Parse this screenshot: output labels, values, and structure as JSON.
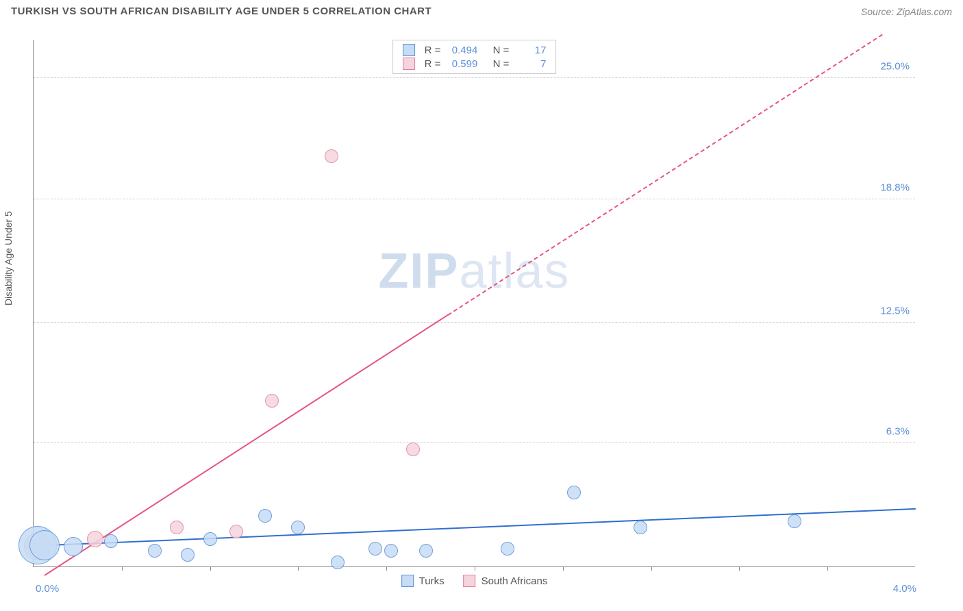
{
  "header": {
    "title": "TURKISH VS SOUTH AFRICAN DISABILITY AGE UNDER 5 CORRELATION CHART",
    "source": "Source: ZipAtlas.com"
  },
  "chart": {
    "type": "scatter",
    "ylabel": "Disability Age Under 5",
    "xlim": [
      0.0,
      4.0
    ],
    "ylim": [
      0.0,
      27.0
    ],
    "xtick_labels": [
      "0.0%",
      "4.0%"
    ],
    "ytick_values": [
      6.3,
      12.5,
      18.8,
      25.0
    ],
    "ytick_labels": [
      "6.3%",
      "12.5%",
      "18.8%",
      "25.0%"
    ],
    "xtick_minor_positions": [
      0.4,
      0.8,
      1.2,
      1.6,
      2.0,
      2.4,
      2.8,
      3.2,
      3.6
    ],
    "grid_color": "#d0d0d0",
    "background_color": "#ffffff",
    "series": {
      "turks": {
        "label": "Turks",
        "point_fill": "#c6dcf5",
        "point_stroke": "#5b8fd6",
        "line_color": "#2f6fd0",
        "points": [
          {
            "x": 0.02,
            "y": 1.1,
            "r": 28
          },
          {
            "x": 0.05,
            "y": 1.1,
            "r": 22
          },
          {
            "x": 0.18,
            "y": 1.0,
            "r": 14
          },
          {
            "x": 0.35,
            "y": 1.3,
            "r": 10
          },
          {
            "x": 0.55,
            "y": 0.8,
            "r": 10
          },
          {
            "x": 0.7,
            "y": 0.6,
            "r": 10
          },
          {
            "x": 0.8,
            "y": 1.4,
            "r": 10
          },
          {
            "x": 1.05,
            "y": 2.6,
            "r": 10
          },
          {
            "x": 1.2,
            "y": 2.0,
            "r": 10
          },
          {
            "x": 1.38,
            "y": 0.2,
            "r": 10
          },
          {
            "x": 1.55,
            "y": 0.9,
            "r": 10
          },
          {
            "x": 1.62,
            "y": 0.8,
            "r": 10
          },
          {
            "x": 1.78,
            "y": 0.8,
            "r": 10
          },
          {
            "x": 2.15,
            "y": 0.9,
            "r": 10
          },
          {
            "x": 2.45,
            "y": 3.8,
            "r": 10
          },
          {
            "x": 2.75,
            "y": 2.0,
            "r": 10
          },
          {
            "x": 3.45,
            "y": 2.3,
            "r": 10
          }
        ],
        "trend": {
          "x1": 0.0,
          "y1": 1.0,
          "x2": 4.0,
          "y2": 2.9,
          "dash_after_x": 4.0
        }
      },
      "south_africans": {
        "label": "South Africans",
        "point_fill": "#f6d4dd",
        "point_stroke": "#e07f9a",
        "line_color": "#e75480",
        "points": [
          {
            "x": 0.02,
            "y": 1.0,
            "r": 20
          },
          {
            "x": 0.28,
            "y": 1.4,
            "r": 12
          },
          {
            "x": 0.65,
            "y": 2.0,
            "r": 10
          },
          {
            "x": 0.92,
            "y": 1.8,
            "r": 10
          },
          {
            "x": 1.08,
            "y": 8.5,
            "r": 10
          },
          {
            "x": 1.35,
            "y": 21.0,
            "r": 10
          },
          {
            "x": 1.72,
            "y": 6.0,
            "r": 10
          }
        ],
        "trend": {
          "x1": 0.05,
          "y1": -0.5,
          "x2": 3.85,
          "y2": 27.2,
          "dash_after_x": 1.88
        }
      }
    },
    "stats_legend": [
      {
        "series": "turks",
        "R": "0.494",
        "N": "17"
      },
      {
        "series": "south_africans",
        "R": "0.599",
        "N": "7"
      }
    ],
    "bottom_legend": [
      "turks",
      "south_africans"
    ],
    "watermark": {
      "bold": "ZIP",
      "rest": "atlas"
    }
  }
}
